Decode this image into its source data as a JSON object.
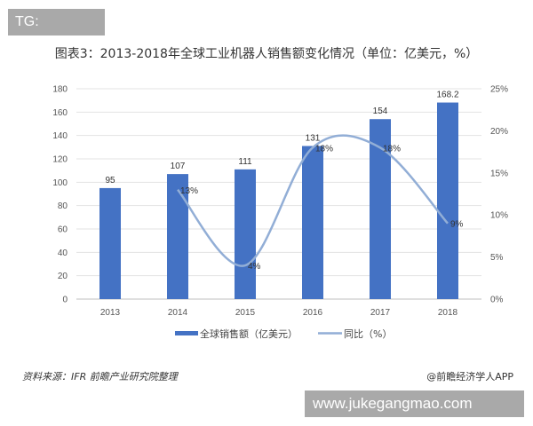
{
  "watermark_top": "TG: MYYJJPP",
  "watermark_bottom": "www.jukegangmao.com",
  "source": "资料来源：IFR 前瞻产业研究院整理",
  "credit": "@前瞻经济学人APP",
  "colors": {
    "bar": "#4472c4",
    "line": "#92aed6"
  },
  "chart_data": {
    "type": "bar+line",
    "title": "图表3：2013-2018年全球工业机器人销售额变化情况（单位：亿美元，%）",
    "categories": [
      "2013",
      "2014",
      "2015",
      "2016",
      "2017",
      "2018"
    ],
    "series": [
      {
        "name": "全球销售额（亿美元）",
        "type": "bar",
        "axis": "left",
        "values": [
          95,
          107,
          111,
          131,
          154,
          168.2
        ],
        "labels": [
          "95",
          "107",
          "111",
          "131",
          "154",
          "168.2"
        ]
      },
      {
        "name": "同比（%）",
        "type": "line",
        "axis": "right",
        "smooth": true,
        "values": [
          null,
          13,
          4,
          18,
          18,
          9
        ],
        "labels": [
          "",
          "13%",
          "4%",
          "18%",
          "18%",
          "9%"
        ]
      }
    ],
    "ylim_left": [
      0,
      180
    ],
    "yticks_left": [
      "0",
      "20",
      "40",
      "60",
      "80",
      "100",
      "120",
      "140",
      "160",
      "180"
    ],
    "ylim_right": [
      0,
      25
    ],
    "yticks_right": [
      "0%",
      "5%",
      "10%",
      "15%",
      "20%",
      "25%"
    ],
    "grid": true,
    "legend": "bottom"
  }
}
